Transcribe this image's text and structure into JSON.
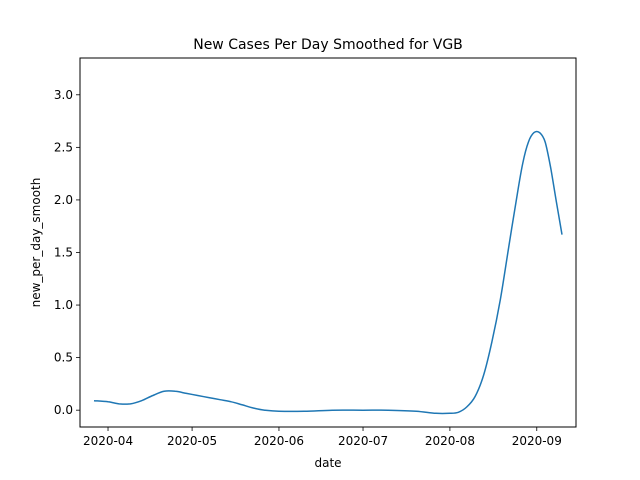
{
  "chart_data": {
    "type": "line",
    "title": "New Cases Per Day Smoothed for VGB",
    "xlabel": "date",
    "ylabel": "new_per_day_smooth",
    "x_ticks": [
      "2020-04",
      "2020-05",
      "2020-06",
      "2020-07",
      "2020-08",
      "2020-09"
    ],
    "y_ticks": [
      "0.0",
      "0.5",
      "1.0",
      "1.5",
      "2.0",
      "2.5",
      "3.0"
    ],
    "xlim": [
      "2020-03-22",
      "2020-09-15"
    ],
    "ylim": [
      -0.16,
      3.35
    ],
    "grid": false,
    "series": [
      {
        "color": "#1f77b4",
        "x": [
          "2020-03-27",
          "2020-04-01",
          "2020-04-05",
          "2020-04-09",
          "2020-04-13",
          "2020-04-17",
          "2020-04-21",
          "2020-04-25",
          "2020-04-29",
          "2020-05-03",
          "2020-05-07",
          "2020-05-11",
          "2020-05-15",
          "2020-05-19",
          "2020-05-23",
          "2020-05-27",
          "2020-06-01",
          "2020-06-10",
          "2020-06-20",
          "2020-07-01",
          "2020-07-10",
          "2020-07-20",
          "2020-07-27",
          "2020-08-01",
          "2020-08-04",
          "2020-08-07",
          "2020-08-10",
          "2020-08-13",
          "2020-08-16",
          "2020-08-19",
          "2020-08-22",
          "2020-08-25",
          "2020-08-27",
          "2020-08-29",
          "2020-08-31",
          "2020-09-02",
          "2020-09-04",
          "2020-09-06",
          "2020-09-08",
          "2020-09-10"
        ],
        "y": [
          0.09,
          0.08,
          0.06,
          0.06,
          0.09,
          0.14,
          0.18,
          0.18,
          0.16,
          0.14,
          0.12,
          0.1,
          0.08,
          0.05,
          0.02,
          0.0,
          -0.01,
          -0.01,
          0.0,
          0.0,
          0.0,
          -0.01,
          -0.03,
          -0.03,
          -0.02,
          0.03,
          0.13,
          0.33,
          0.65,
          1.05,
          1.55,
          2.05,
          2.35,
          2.55,
          2.64,
          2.64,
          2.55,
          2.3,
          1.98,
          1.67
        ]
      }
    ]
  }
}
